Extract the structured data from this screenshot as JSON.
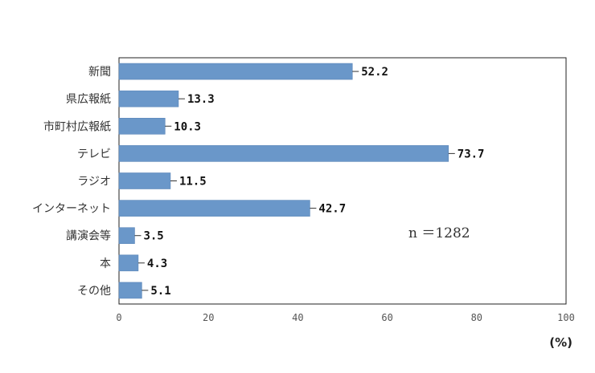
{
  "chart_data": {
    "type": "bar",
    "orientation": "horizontal",
    "categories": [
      "新聞",
      "県広報紙",
      "市町村広報紙",
      "テレビ",
      "ラジオ",
      "インターネット",
      "講演会等",
      "本",
      "その他"
    ],
    "values": [
      52.2,
      13.3,
      10.3,
      73.7,
      11.5,
      42.7,
      3.5,
      4.3,
      5.1
    ],
    "value_labels": [
      "52.2",
      "13.3",
      "10.3",
      "73.7",
      "11.5",
      "42.7",
      "3.5",
      "4.3",
      "5.1"
    ],
    "xlim": [
      0,
      100
    ],
    "x_ticks": [
      "0",
      "20",
      "40",
      "60",
      "80",
      "100"
    ],
    "x_unit": "(%)",
    "annotation": "n ＝1282",
    "grid": false,
    "colors": {
      "bar": "#6a97c9",
      "bar_edge": "#5a86b8",
      "axis": "#333333",
      "frame": "#222222"
    }
  }
}
